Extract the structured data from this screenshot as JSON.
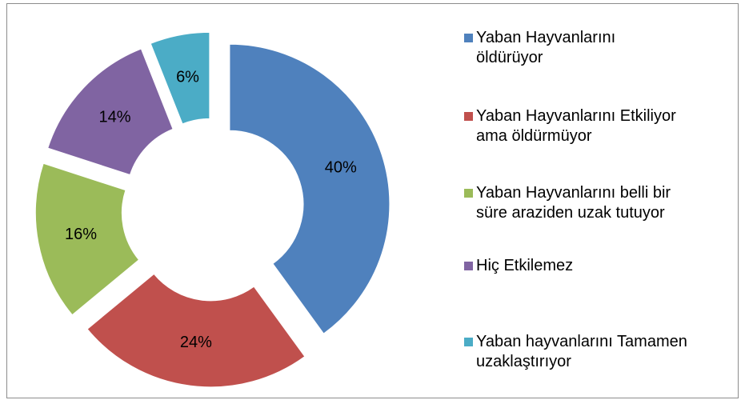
{
  "chart_data": {
    "type": "pie",
    "categories": [
      "Yaban Hayvanlarını öldürüyor",
      "Yaban Hayvanlarını Etkiliyor ama öldürmüyor",
      "Yaban Hayvanlarını belli bir süre araziden uzak tutuyor",
      "Hiç Etkilemez",
      "Yaban hayvanlarını Tamamen uzaklaştırıyor"
    ],
    "values": [
      40,
      24,
      16,
      14,
      6
    ],
    "value_labels": [
      "40%",
      "24%",
      "16%",
      "14%",
      "6%"
    ],
    "colors": [
      "#4f81bd",
      "#c0504d",
      "#9bbb59",
      "#8064a2",
      "#4bacc6"
    ],
    "legend": "right"
  }
}
